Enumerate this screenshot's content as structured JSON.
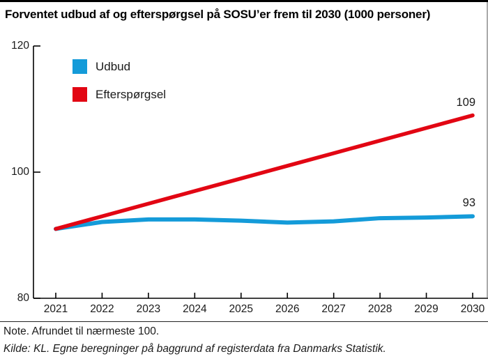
{
  "title": "Forventet udbud af og efterspørgsel på SOSU’er frem til 2030 (1000 personer)",
  "note": "Note. Afrundet til nærmeste 100.",
  "source": "Kilde: KL. Egne beregninger på baggrund af registerdata fra Danmarks Statistik.",
  "colors": {
    "udbud_blue": "#149bd9",
    "efterspoergsel_red": "#e20613",
    "axis": "#000000",
    "text": "#1a1a1a"
  },
  "chart_data": {
    "type": "line",
    "title": "Forventet udbud af og efterspørgsel på SOSU’er frem til 2030 (1000 personer)",
    "x": [
      2021,
      2022,
      2023,
      2024,
      2025,
      2026,
      2027,
      2028,
      2029,
      2030
    ],
    "series": [
      {
        "name": "Udbud",
        "color": "#149bd9",
        "values": [
          91,
          92.1,
          92.5,
          92.5,
          92.3,
          92.0,
          92.2,
          92.7,
          92.8,
          93
        ],
        "end_label": "93"
      },
      {
        "name": "Efterspørgsel",
        "color": "#e20613",
        "values": [
          91,
          93,
          95,
          97,
          99,
          101,
          103,
          105,
          107,
          109
        ],
        "end_label": "109"
      }
    ],
    "xlabel": "",
    "ylabel": "",
    "ylim": [
      80,
      120
    ],
    "yticks": [
      80,
      100,
      120
    ],
    "grid": false,
    "legend_position": "top-left"
  }
}
